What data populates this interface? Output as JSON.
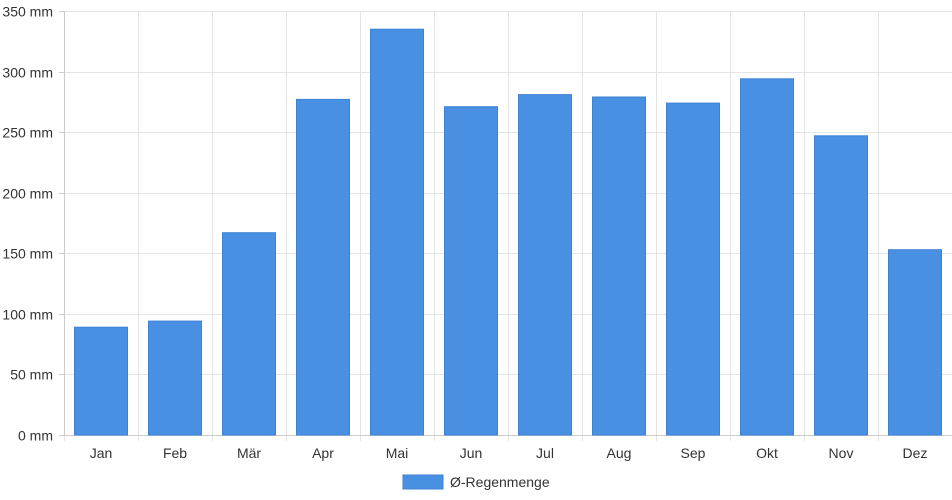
{
  "chart_data": {
    "type": "bar",
    "categories": [
      "Jan",
      "Feb",
      "Mär",
      "Apr",
      "Mai",
      "Jun",
      "Jul",
      "Aug",
      "Sep",
      "Okt",
      "Nov",
      "Dez"
    ],
    "series": [
      {
        "name": "Ø-Regenmenge",
        "values": [
          89,
          94,
          167,
          277,
          335,
          271,
          281,
          279,
          274,
          294,
          247,
          153
        ],
        "color": "#4a90e2"
      }
    ],
    "ylim": [
      0,
      350
    ],
    "yticks": [
      0,
      50,
      100,
      150,
      200,
      250,
      300,
      350
    ],
    "ytick_labels": [
      "0 mm",
      "50 mm",
      "100 mm",
      "150 mm",
      "200 mm",
      "250 mm",
      "300 mm",
      "350 mm"
    ],
    "grid": true,
    "legend": "bottom-center"
  }
}
